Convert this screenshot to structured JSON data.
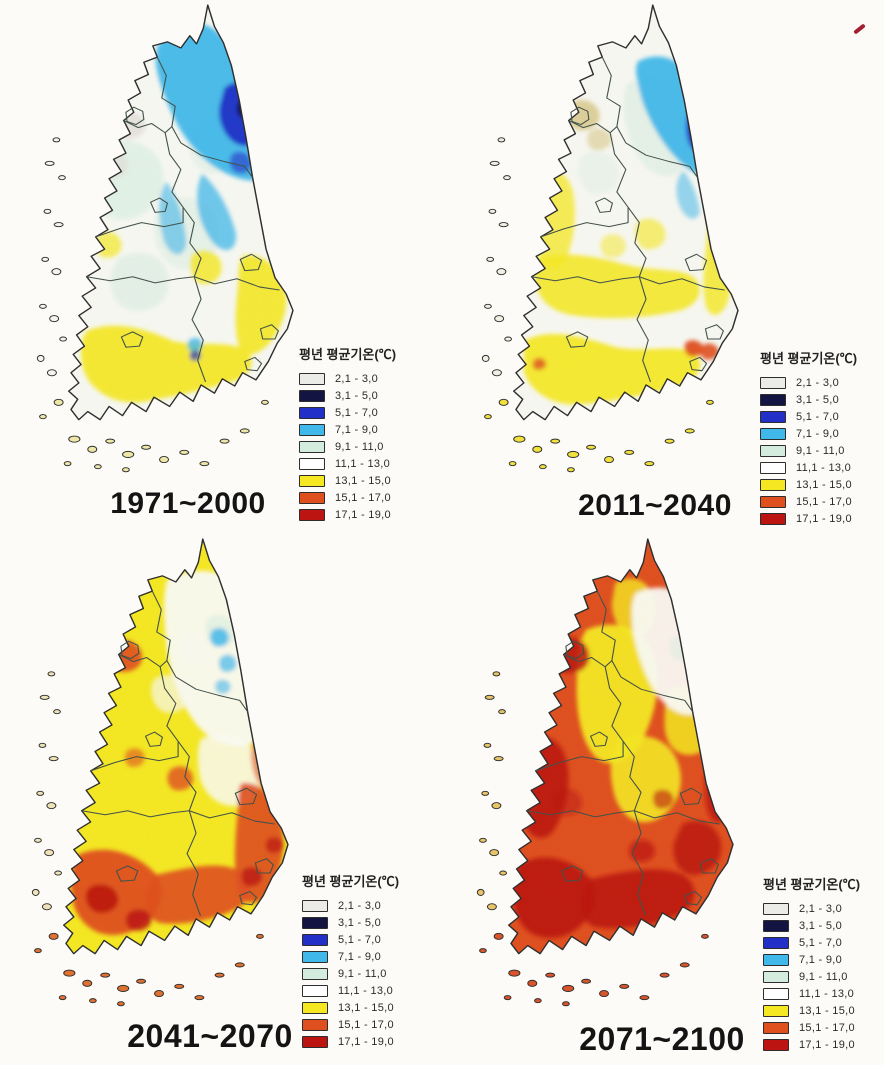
{
  "page": {
    "background_color": "#fcfbf7"
  },
  "legend": {
    "title": "평년 평균기온(℃)",
    "entries": [
      {
        "range": "2,1 - 3,0",
        "color": "#ebebe7"
      },
      {
        "range": "3,1 - 5,0",
        "color": "#141442"
      },
      {
        "range": "5,1 - 7,0",
        "color": "#2230c8"
      },
      {
        "range": "7,1 - 9,0",
        "color": "#41b8ea"
      },
      {
        "range": "9,1 - 11,0",
        "color": "#d4ecde"
      },
      {
        "range": "11,1 - 13,0",
        "color": "#ffffff"
      },
      {
        "range": "13,1 - 15,0",
        "color": "#f5e822"
      },
      {
        "range": "15,1 - 17,0",
        "color": "#e0501f"
      },
      {
        "range": "17,1 - 19,0",
        "color": "#bc1511"
      }
    ]
  },
  "maps": [
    {
      "period": "1971~2000"
    },
    {
      "period": "2011~2040"
    },
    {
      "period": "2041~2070"
    },
    {
      "period": "2071~2100"
    }
  ],
  "annotations": {
    "pen_mark_color": "#a21f33"
  }
}
